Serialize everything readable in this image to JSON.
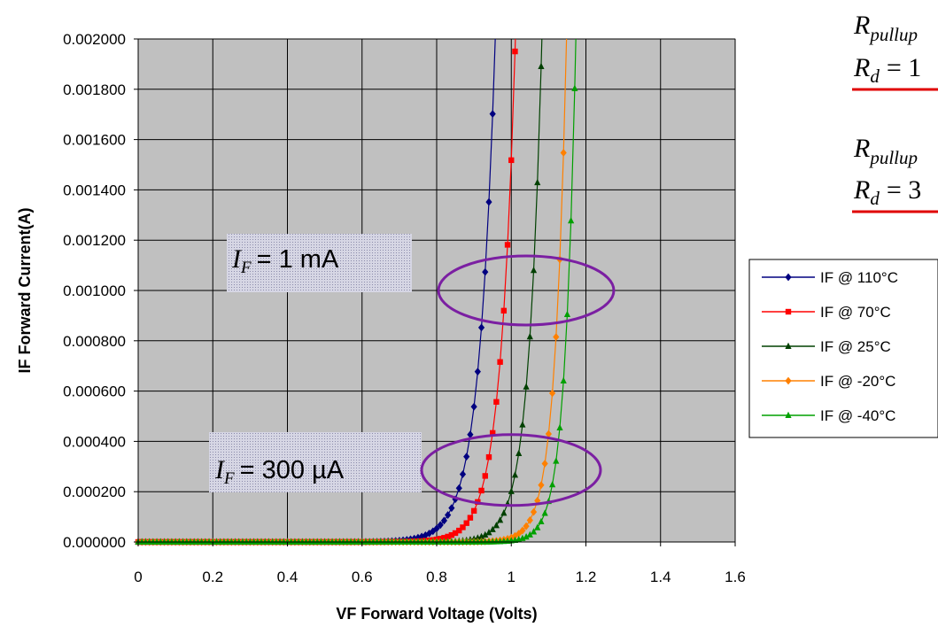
{
  "chart_data": {
    "type": "line",
    "xlabel": "VF Forward Voltage (Volts)",
    "ylabel": "IF Forward Current(A)",
    "xlim": [
      0,
      1.6
    ],
    "ylim": [
      0,
      0.002
    ],
    "x_ticks": [
      "0",
      "0.2",
      "0.4",
      "0.6",
      "0.8",
      "1",
      "1.2",
      "1.4",
      "1.6"
    ],
    "y_ticks": [
      "0.000000",
      "0.000200",
      "0.000400",
      "0.000600",
      "0.000800",
      "0.001000",
      "0.001200",
      "0.001400",
      "0.001600",
      "0.001800",
      "0.002000"
    ],
    "grid": true,
    "plot_background": "#c0c0c0",
    "legend_position": "right",
    "series": [
      {
        "name": "IF @ 110°C",
        "color": "#000080",
        "marker": "diamond",
        "v0": 0.957,
        "k": 0.0434
      },
      {
        "name": "IF @ 70°C",
        "color": "#ff0000",
        "marker": "square",
        "v0": 1.011,
        "k": 0.0399
      },
      {
        "name": "IF @ 25°C",
        "color": "#004000",
        "marker": "triangle",
        "v0": 1.082,
        "k": 0.0357
      },
      {
        "name": "IF @ -20°C",
        "color": "#ff8000",
        "marker": "diamond",
        "v0": 1.148,
        "k": 0.0312
      },
      {
        "name": "IF @ -40°C",
        "color": "#00a000",
        "marker": "triangle",
        "v0": 1.173,
        "k": 0.029
      }
    ],
    "annotations": [
      {
        "var": "I",
        "sub": "F",
        "text": "= 1 mA",
        "target_current": 0.001
      },
      {
        "var": "I",
        "sub": "F",
        "text": "= 300 µA",
        "target_current": 0.0003
      }
    ]
  },
  "equations": [
    {
      "var": "R",
      "sub": "pullup",
      "line2_var": "R",
      "line2_sub": "d",
      "line2_text": "= 1"
    },
    {
      "var": "R",
      "sub": "pullup",
      "line2_var": "R",
      "line2_sub": "d",
      "line2_text": "= 3"
    }
  ],
  "colors": {
    "ellipse": "#7b1fa2",
    "underline": "#e00000",
    "callout_bg": "#b8b8d0"
  }
}
